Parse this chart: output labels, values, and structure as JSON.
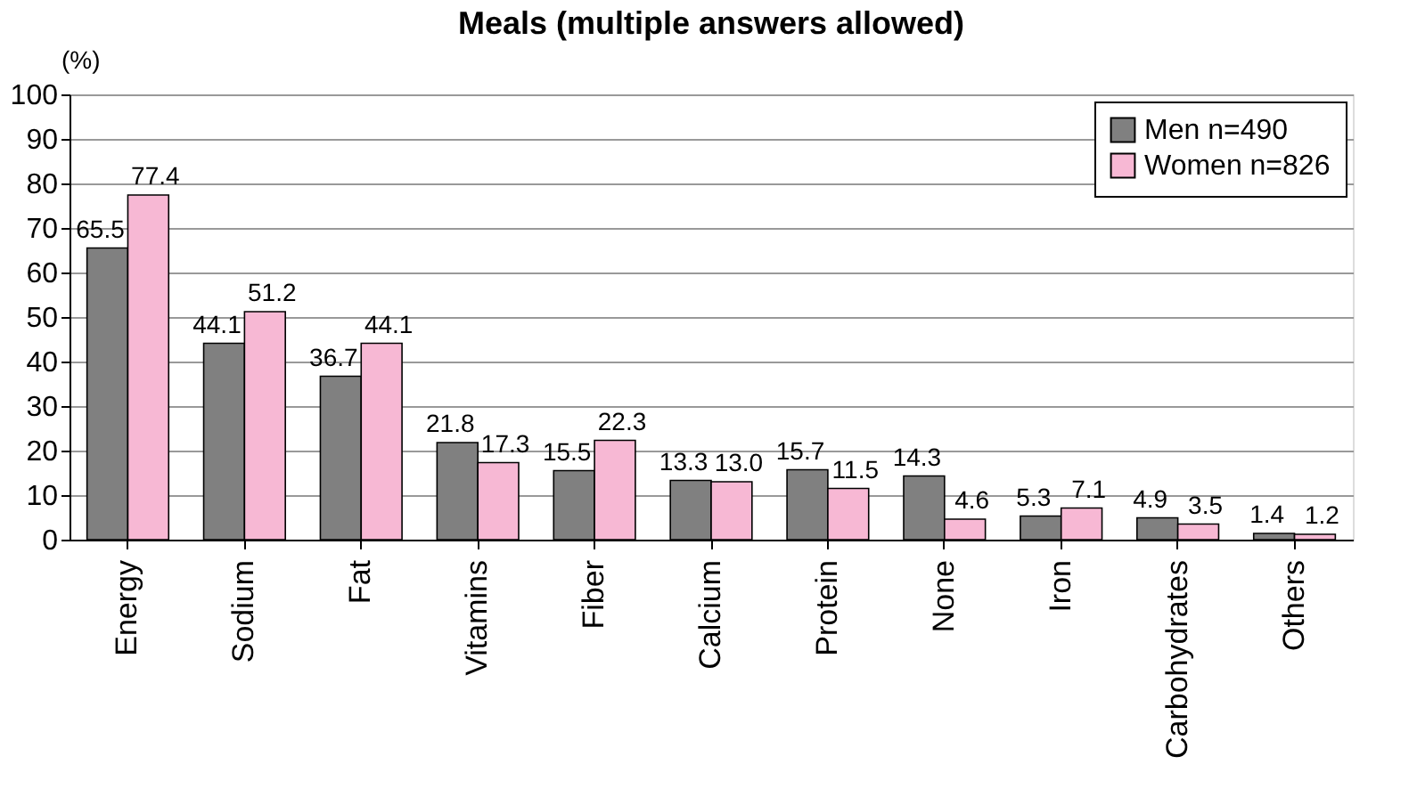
{
  "chart_data": {
    "type": "bar",
    "title": "Meals (multiple answers allowed)",
    "ylabel": "(%)",
    "categories": [
      "Energy",
      "Sodium",
      "Fat",
      "Vitamins",
      "Fiber",
      "Calcium",
      "Protein",
      "None",
      "Iron",
      "Carbohydrates",
      "Others"
    ],
    "series": [
      {
        "name": "Men n=490",
        "color": "#808080",
        "values": [
          65.5,
          44.1,
          36.7,
          21.8,
          15.5,
          13.3,
          15.7,
          14.3,
          5.3,
          4.9,
          1.4
        ],
        "value_labels": [
          "65.5",
          "44.1",
          "36.7",
          "21.8",
          "15.5",
          "13.3",
          "15.7",
          "14.3",
          "5.3",
          "4.9",
          "1.4"
        ]
      },
      {
        "name": "Women n=826",
        "color": "#f7b8d4",
        "values": [
          77.4,
          51.2,
          44.1,
          17.3,
          22.3,
          13.0,
          11.5,
          4.6,
          7.1,
          3.5,
          1.2
        ],
        "value_labels": [
          "77.4",
          "51.2",
          "44.1",
          "17.3",
          "22.3",
          "13.0",
          "11.5",
          "4.6",
          "7.1",
          "3.5",
          "1.2"
        ]
      }
    ],
    "ylim": [
      0,
      100
    ],
    "yticks": [
      0,
      10,
      20,
      30,
      40,
      50,
      60,
      70,
      80,
      90,
      100
    ],
    "grid": "y",
    "legend": "top right"
  }
}
